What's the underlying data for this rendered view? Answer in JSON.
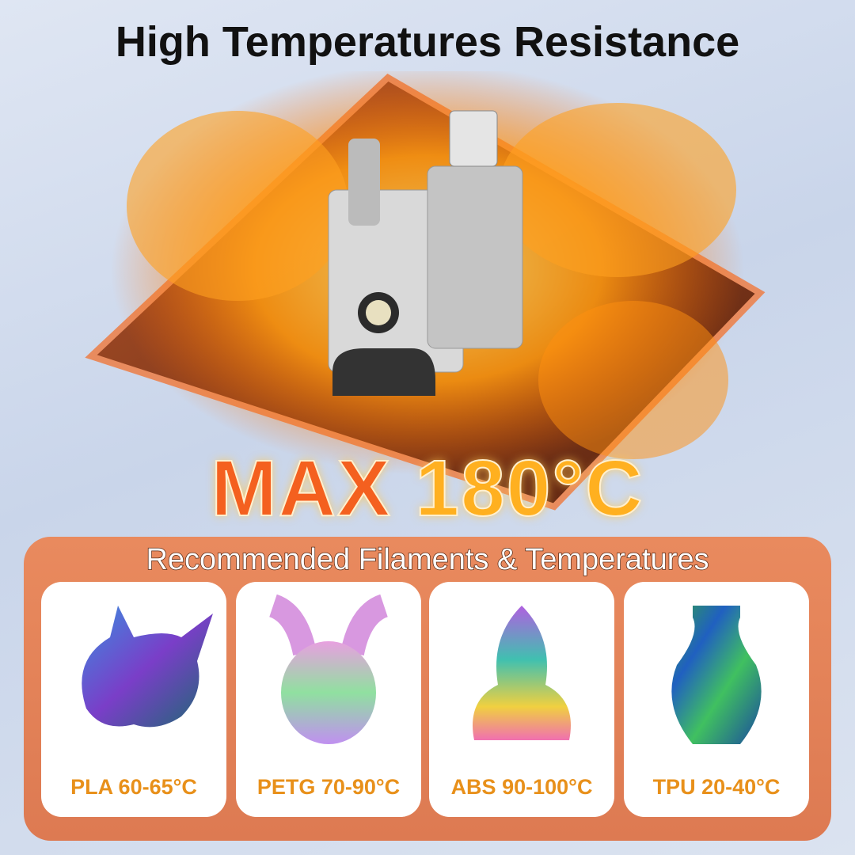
{
  "title": "High Temperatures Resistance",
  "hero": {
    "max_prefix": "MAX",
    "max_value": "180°C"
  },
  "panel": {
    "title": "Recommended Filaments & Temperatures",
    "filaments": [
      {
        "label": "PLA 60-65°C",
        "image": "rainbow-dragon-skull-print"
      },
      {
        "label": "PETG 70-90°C",
        "image": "rainbow-creature-print"
      },
      {
        "label": "ABS 90-100°C",
        "image": "rainbow-flame-cat-print"
      },
      {
        "label": "TPU 20-40°C",
        "image": "spiral-vase-print"
      }
    ]
  },
  "colors": {
    "accent_orange": "#e8901a",
    "panel": "#e08157",
    "max_red": "#f4601f"
  }
}
